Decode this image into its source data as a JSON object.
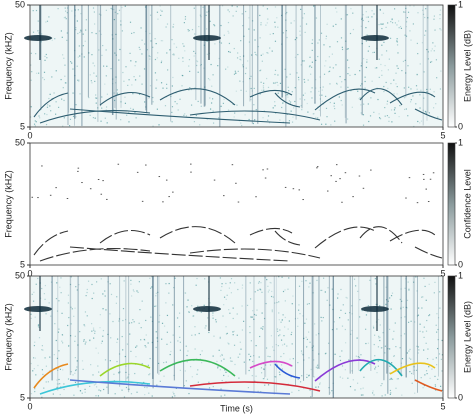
{
  "chart_data": [
    {
      "type": "heatmap",
      "ylabel": "Frequency (kHZ)",
      "xlim": [
        0,
        5
      ],
      "xticks": [
        0,
        5
      ],
      "ylim": [
        5,
        50
      ],
      "yticks": [
        5,
        50
      ],
      "colorbar_label": "Energy Level (dB)",
      "clim": [
        0,
        1
      ],
      "cticks": [
        0,
        1
      ]
    },
    {
      "type": "heatmap",
      "ylabel": "Frequency (kHZ)",
      "xlim": [
        0,
        5
      ],
      "xticks": [
        0,
        5
      ],
      "ylim": [
        5,
        50
      ],
      "yticks": [
        5,
        50
      ],
      "colorbar_label": "Confidence Level",
      "clim": [
        0,
        1
      ],
      "cticks": [
        0,
        1
      ]
    },
    {
      "type": "heatmap",
      "ylabel": "Frequency (kHZ)",
      "xlabel": "Time (s)",
      "xlim": [
        0,
        5
      ],
      "xticks": [
        0,
        5
      ],
      "ylim": [
        5,
        50
      ],
      "yticks": [
        5,
        50
      ],
      "colorbar_label": "Energy Level (dB)",
      "clim": [
        0,
        1
      ],
      "cticks": [
        0,
        1
      ]
    }
  ]
}
